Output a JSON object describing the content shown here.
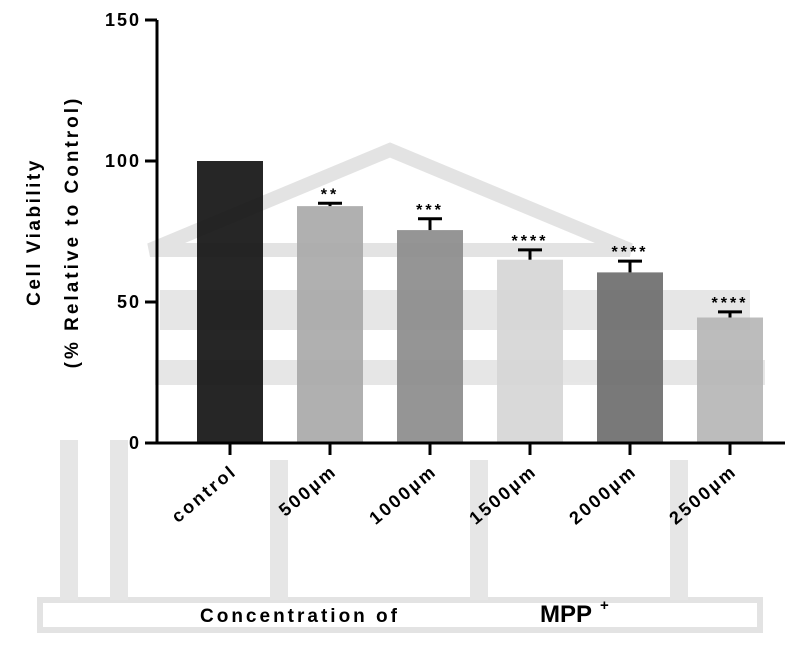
{
  "chart_data": {
    "type": "bar",
    "y_label": [
      "Cell Viability",
      "(% Relative to Control)"
    ],
    "x_label": "Concentration of",
    "x_label_suffix": "MPP",
    "x_label_superscript": "+",
    "categories": [
      "control",
      "500µm",
      "1000µm",
      "1500µm",
      "2000µm",
      "2500µm"
    ],
    "values": [
      100,
      84,
      75.5,
      65,
      60.5,
      44.5
    ],
    "errors": [
      0,
      1,
      4,
      3.5,
      4,
      2
    ],
    "annotations": [
      null,
      "**",
      "***",
      "****",
      "****",
      "****"
    ],
    "colors": [
      "#141414",
      "#a9a9a9",
      "#8c8c8c",
      "#d6d6d6",
      "#6e6e6e",
      "#b6b6b6"
    ],
    "ylim": [
      0,
      150
    ],
    "yticks": [
      0,
      50,
      100,
      150
    ]
  }
}
